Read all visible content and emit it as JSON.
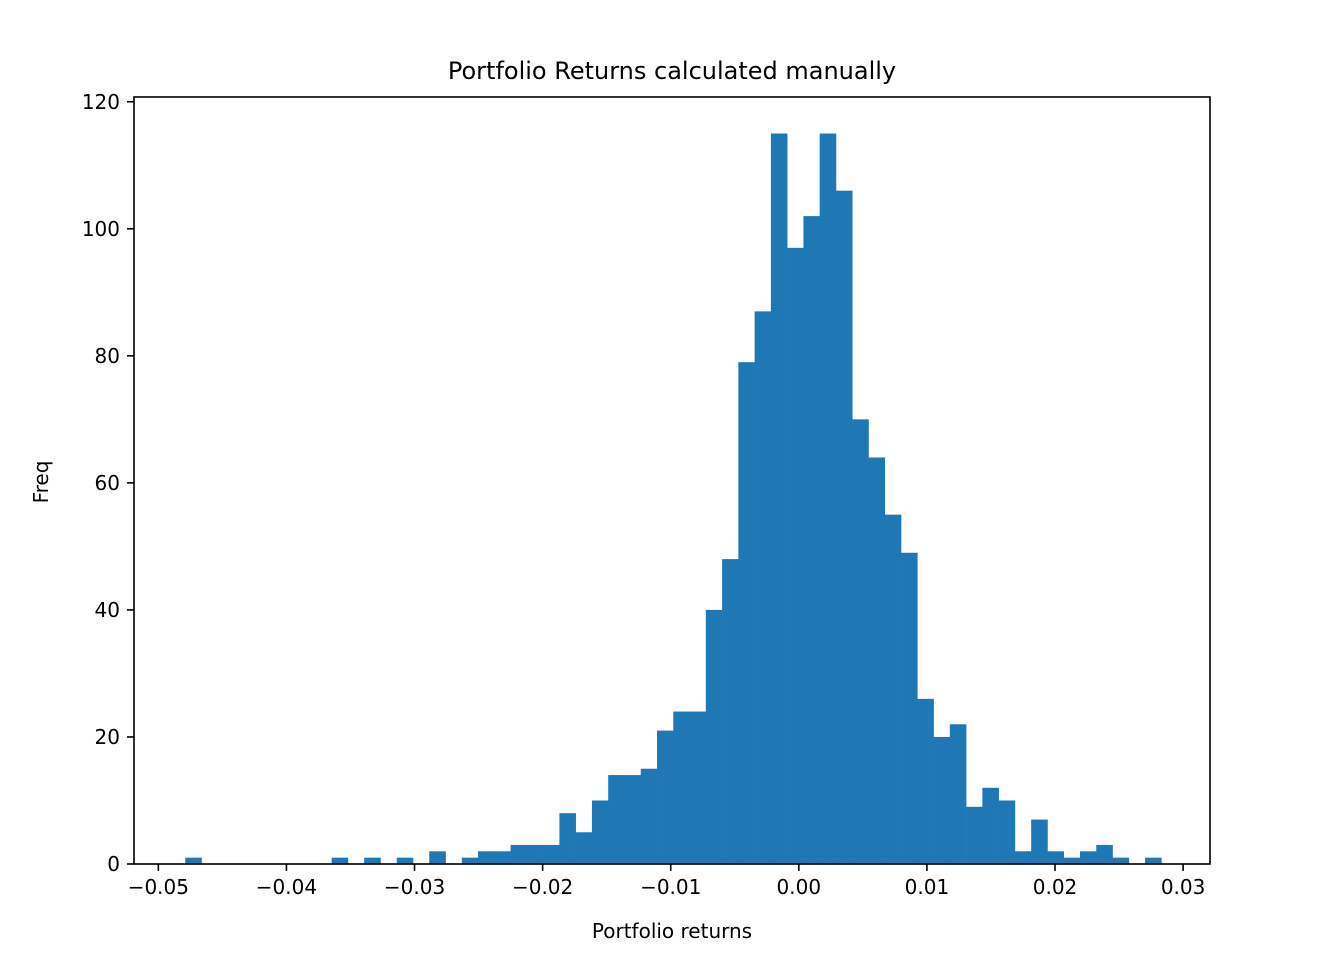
{
  "chart_data": {
    "type": "bar",
    "title": "Portfolio Returns calculated manually",
    "xlabel": "Portfolio returns",
    "ylabel": "Freq",
    "xlim": [
      -0.0519,
      0.0321
    ],
    "ylim": [
      0,
      120.75
    ],
    "bin_start": -0.0479,
    "bin_width": 0.00127,
    "counts": [
      1,
      0,
      0,
      0,
      0,
      0,
      0,
      0,
      0,
      1,
      0,
      1,
      0,
      1,
      0,
      2,
      0,
      1,
      2,
      2,
      3,
      3,
      3,
      8,
      5,
      10,
      14,
      14,
      15,
      21,
      24,
      24,
      40,
      48,
      79,
      87,
      115,
      97,
      102,
      115,
      106,
      70,
      64,
      55,
      49,
      26,
      20,
      22,
      9,
      12,
      10,
      2,
      7,
      2,
      1,
      2,
      3,
      1,
      0,
      1
    ],
    "x_ticks": [
      -0.05,
      -0.04,
      -0.03,
      -0.02,
      -0.01,
      0.0,
      0.01,
      0.02,
      0.03
    ],
    "x_tick_labels": [
      "−0.05",
      "−0.04",
      "−0.03",
      "−0.02",
      "−0.01",
      "0.00",
      "0.01",
      "0.02",
      "0.03"
    ],
    "y_ticks": [
      0,
      20,
      40,
      60,
      80,
      100,
      120
    ],
    "y_tick_labels": [
      "0",
      "20",
      "40",
      "60",
      "80",
      "100",
      "120"
    ],
    "grid": false,
    "bar_color": "#1f77b4"
  }
}
